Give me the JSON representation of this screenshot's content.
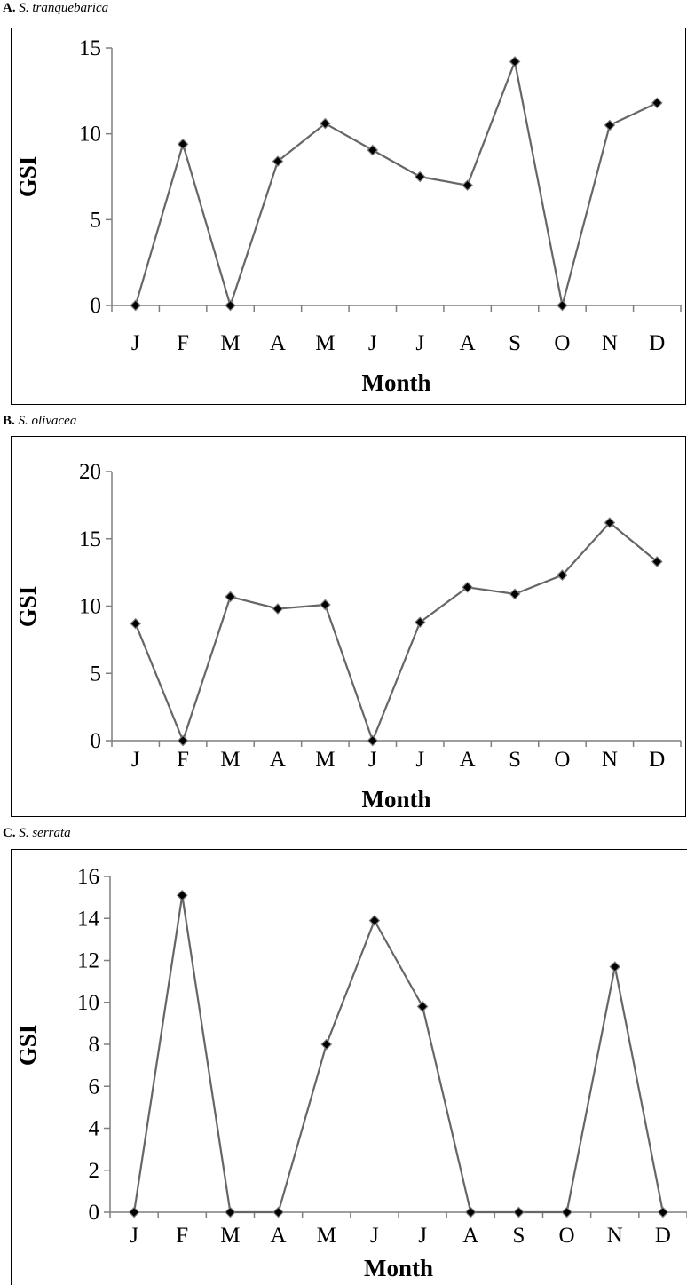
{
  "chart_data": [
    {
      "type": "line",
      "panel_letter": "A.",
      "species": "S. tranquebarica",
      "title": "A. S. tranquebarica",
      "xlabel": "Month",
      "ylabel": "GSI",
      "categories": [
        "J",
        "F",
        "M",
        "A",
        "M",
        "J",
        "J",
        "A",
        "S",
        "O",
        "N",
        "D"
      ],
      "series": [
        {
          "values": [
            0,
            9.4,
            0,
            8.4,
            10.6,
            9.05,
            7.5,
            7.0,
            14.2,
            0,
            10.5,
            11.8
          ]
        }
      ],
      "ylim": [
        0,
        15
      ],
      "yticks": [
        0,
        5,
        10,
        15
      ],
      "grid": false,
      "line_color": "#666666",
      "marker": "diamond",
      "marker_color": "#000000"
    },
    {
      "type": "line",
      "panel_letter": "B.",
      "species": "S. olivacea",
      "title": "B. S. olivacea",
      "xlabel": "Month",
      "ylabel": "GSI",
      "categories": [
        "J",
        "F",
        "M",
        "A",
        "M",
        "J",
        "J",
        "A",
        "S",
        "O",
        "N",
        "D"
      ],
      "series": [
        {
          "values": [
            8.7,
            0,
            10.7,
            9.8,
            10.1,
            0,
            8.8,
            11.4,
            10.9,
            12.3,
            16.2,
            13.3
          ]
        }
      ],
      "ylim": [
        0,
        20
      ],
      "yticks": [
        0,
        5,
        10,
        15,
        20
      ],
      "grid": false,
      "line_color": "#666666",
      "marker": "diamond",
      "marker_color": "#000000"
    },
    {
      "type": "line",
      "panel_letter": "C.",
      "species": "S. serrata",
      "title": "C. S. serrata",
      "xlabel": "Month",
      "ylabel": "GSI",
      "categories": [
        "J",
        "F",
        "M",
        "A",
        "M",
        "J",
        "J",
        "A",
        "S",
        "O",
        "N",
        "D"
      ],
      "series": [
        {
          "values": [
            0,
            15.1,
            0,
            0,
            8.0,
            13.9,
            9.8,
            0,
            0,
            0,
            11.7,
            0
          ]
        }
      ],
      "ylim": [
        0,
        16
      ],
      "yticks": [
        0,
        2,
        4,
        6,
        8,
        10,
        12,
        14,
        16
      ],
      "grid": false,
      "line_color": "#666666",
      "marker": "diamond",
      "marker_color": "#000000"
    }
  ]
}
